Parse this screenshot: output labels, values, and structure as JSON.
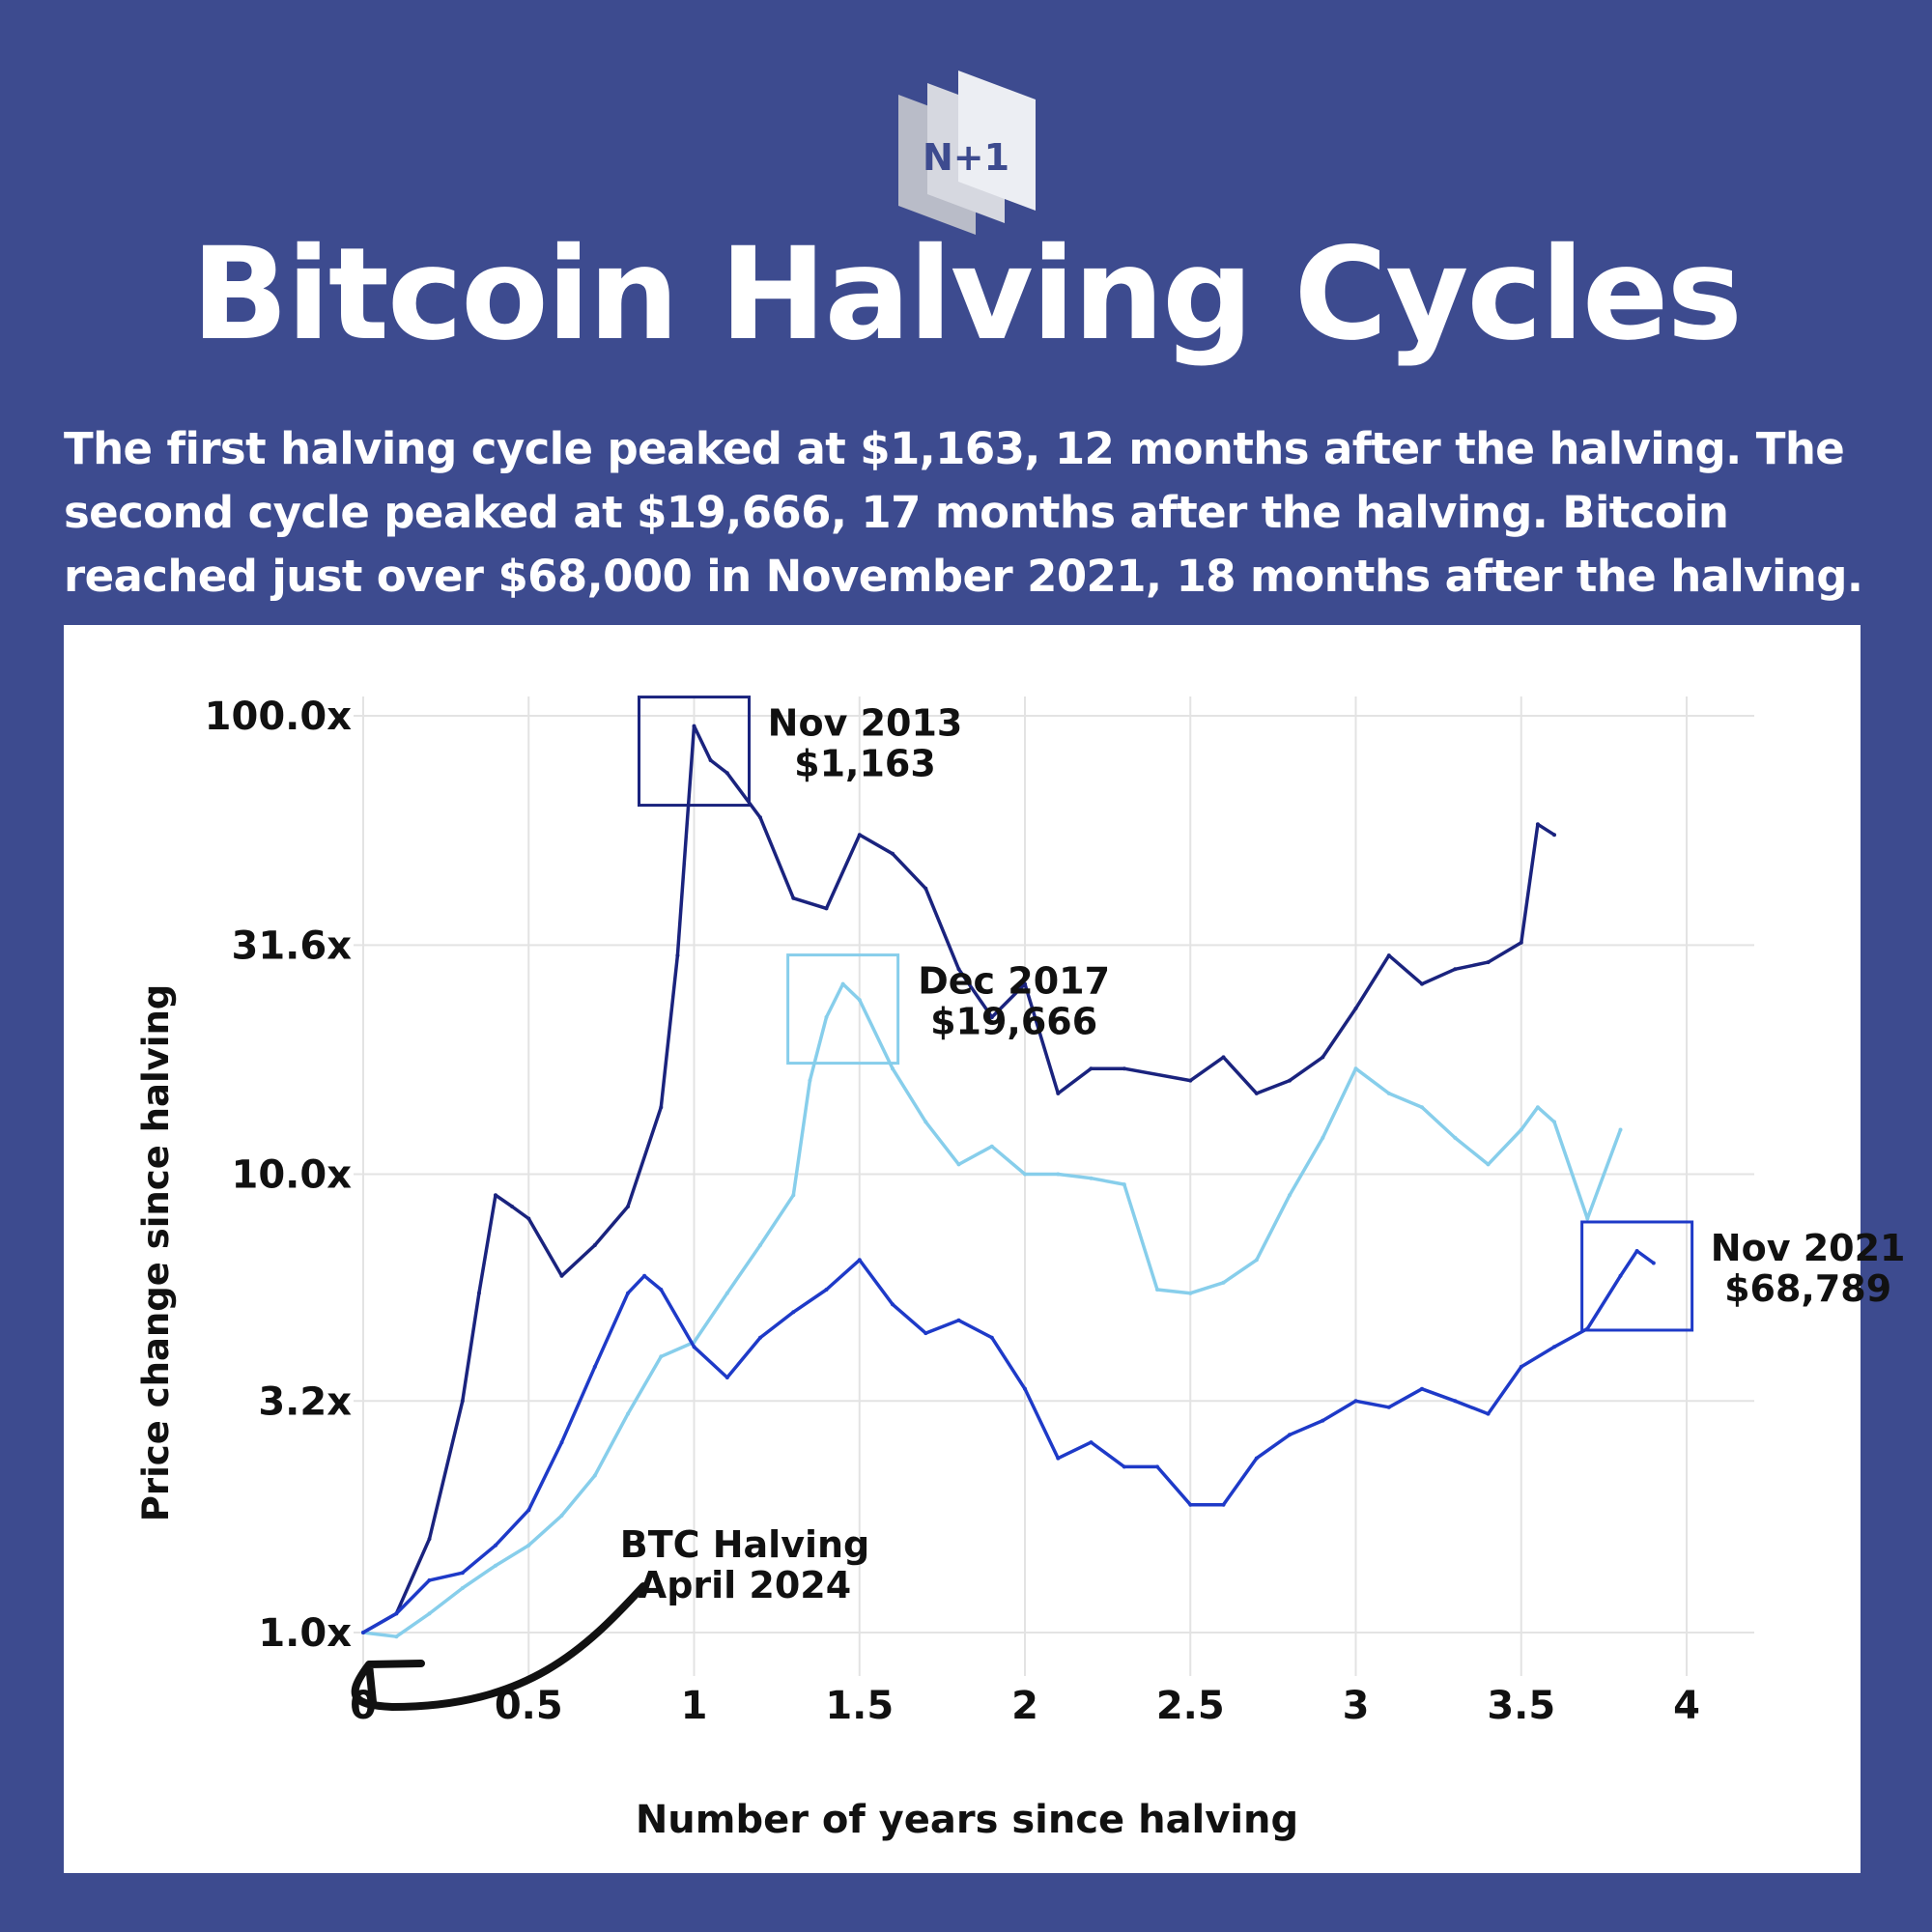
{
  "header": {
    "logo_text": "N+1",
    "title": "Bitcoin Halving Cycles",
    "subtitle_lines": [
      "The first halving cycle peaked at $1,163, 12 months after the halving. The",
      "second cycle peaked at $19,666, 17 months after the halving. Bitcoin",
      "reached just over $68,000 in November 2021, 18 months after the halving."
    ]
  },
  "chart_data": {
    "type": "line",
    "xlabel": "Number of years since halving",
    "ylabel": "Price change since halving",
    "xlim": [
      0,
      4
    ],
    "ylim": [
      1.0,
      100.0
    ],
    "y_scale": "log",
    "grid": true,
    "x_ticks": [
      "0",
      "0.5",
      "1",
      "1.5",
      "2",
      "2.5",
      "3",
      "3.5",
      "4"
    ],
    "y_ticks": [
      {
        "value": 1.0,
        "label": "1.0x"
      },
      {
        "value": 3.2,
        "label": "3.2x"
      },
      {
        "value": 10.0,
        "label": "10.0x"
      },
      {
        "value": 31.6,
        "label": "31.6x"
      },
      {
        "value": 100.0,
        "label": "100.0x"
      }
    ],
    "series": [
      {
        "color": "#1a237e",
        "x": [
          0,
          0.1,
          0.2,
          0.3,
          0.35,
          0.4,
          0.45,
          0.5,
          0.6,
          0.7,
          0.8,
          0.9,
          0.95,
          1.0,
          1.05,
          1.1,
          1.2,
          1.3,
          1.4,
          1.5,
          1.6,
          1.7,
          1.8,
          1.9,
          2.0,
          2.1,
          2.2,
          2.3,
          2.5,
          2.6,
          2.7,
          2.8,
          2.9,
          3.0,
          3.1,
          3.2,
          3.3,
          3.4,
          3.5,
          3.55,
          3.6
        ],
        "y": [
          1.0,
          1.1,
          1.6,
          3.2,
          5.5,
          9.0,
          8.5,
          8.0,
          6.0,
          7.0,
          8.5,
          14.0,
          30.0,
          95.0,
          80.0,
          75.0,
          60.0,
          40.0,
          38.0,
          55.0,
          50.0,
          42.0,
          28.0,
          22.0,
          26.0,
          15.0,
          17.0,
          17.0,
          16.0,
          18.0,
          15.0,
          16.0,
          18.0,
          23.0,
          30.0,
          26.0,
          28.0,
          29.0,
          32.0,
          58.0,
          55.0
        ]
      },
      {
        "color": "#87ceeb",
        "x": [
          0,
          0.1,
          0.2,
          0.3,
          0.4,
          0.5,
          0.6,
          0.7,
          0.8,
          0.9,
          1.0,
          1.1,
          1.2,
          1.3,
          1.35,
          1.4,
          1.45,
          1.5,
          1.6,
          1.7,
          1.8,
          1.9,
          2.0,
          2.1,
          2.2,
          2.3,
          2.4,
          2.5,
          2.6,
          2.7,
          2.8,
          2.9,
          3.0,
          3.1,
          3.2,
          3.3,
          3.4,
          3.5,
          3.55,
          3.6,
          3.7,
          3.8
        ],
        "y": [
          1.0,
          0.98,
          1.1,
          1.25,
          1.4,
          1.55,
          1.8,
          2.2,
          3.0,
          4.0,
          4.3,
          5.5,
          7.0,
          9.0,
          16.0,
          22.0,
          26.0,
          24.0,
          17.0,
          13.0,
          10.5,
          11.5,
          10.0,
          10.0,
          9.8,
          9.5,
          5.6,
          5.5,
          5.8,
          6.5,
          9.0,
          12.0,
          17.0,
          15.0,
          14.0,
          12.0,
          10.5,
          12.5,
          14.0,
          13.0,
          8.0,
          12.5
        ]
      },
      {
        "color": "#1e3ac8",
        "x": [
          0,
          0.1,
          0.2,
          0.3,
          0.4,
          0.5,
          0.6,
          0.7,
          0.8,
          0.85,
          0.9,
          1.0,
          1.1,
          1.2,
          1.3,
          1.4,
          1.5,
          1.6,
          1.7,
          1.8,
          1.9,
          2.0,
          2.1,
          2.2,
          2.3,
          2.4,
          2.5,
          2.6,
          2.7,
          2.8,
          2.9,
          3.0,
          3.1,
          3.2,
          3.3,
          3.4,
          3.5,
          3.6,
          3.7,
          3.8,
          3.85,
          3.9
        ],
        "y": [
          1.0,
          1.1,
          1.3,
          1.35,
          1.55,
          1.85,
          2.6,
          3.8,
          5.5,
          6.0,
          5.6,
          4.2,
          3.6,
          4.4,
          5.0,
          5.6,
          6.5,
          5.2,
          4.5,
          4.8,
          4.4,
          3.4,
          2.4,
          2.6,
          2.3,
          2.3,
          1.9,
          1.9,
          2.4,
          2.7,
          2.9,
          3.2,
          3.1,
          3.4,
          3.2,
          3.0,
          3.8,
          4.2,
          4.6,
          6.0,
          6.8,
          6.4
        ]
      }
    ],
    "annotations": [
      {
        "lines": [
          "Nov 2013",
          "$1,163"
        ],
        "color": "#1a237e"
      },
      {
        "lines": [
          "Dec 2017",
          "$19,666"
        ],
        "color": "#87ceeb"
      },
      {
        "lines": [
          "Nov 2021",
          "$68,789"
        ],
        "color": "#1e3ac8"
      },
      {
        "lines": [
          "BTC Halving",
          "April 2024"
        ]
      }
    ]
  }
}
